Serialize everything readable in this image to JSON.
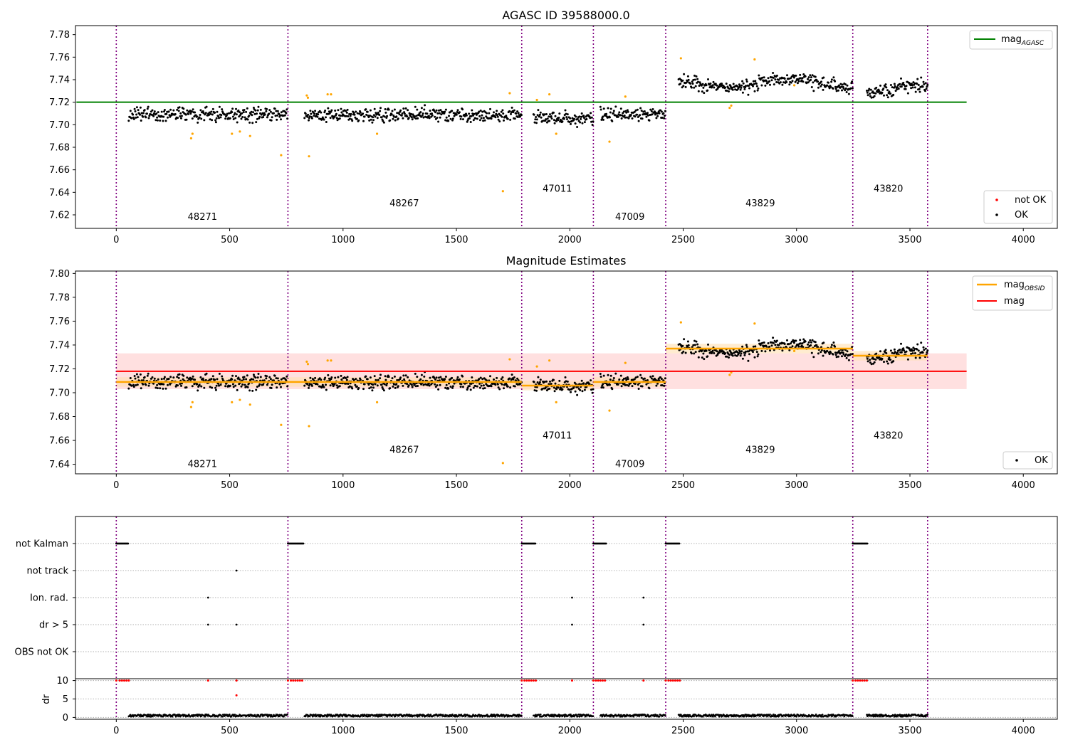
{
  "chart_data": [
    {
      "type": "scatter",
      "title": "AGASC ID 39588000.0",
      "xlim": [
        -180,
        4150
      ],
      "ylim": [
        7.608,
        7.788
      ],
      "xticks": [
        0,
        500,
        1000,
        1500,
        2000,
        2500,
        3000,
        3500,
        4000
      ],
      "yticks": [
        7.62,
        7.64,
        7.66,
        7.68,
        7.7,
        7.72,
        7.74,
        7.76,
        7.78
      ],
      "ytick_decimals": 2,
      "obs_boundaries": [
        0,
        757,
        1788,
        2104,
        2423,
        3248,
        3578
      ],
      "obs_labels": [
        {
          "text": "48271",
          "x": 380,
          "y": 7.618
        },
        {
          "text": "48267",
          "x": 1270,
          "y": 7.63
        },
        {
          "text": "47011",
          "x": 1945,
          "y": 7.643
        },
        {
          "text": "47009",
          "x": 2265,
          "y": 7.618
        },
        {
          "text": "43829",
          "x": 2840,
          "y": 7.63
        },
        {
          "text": "43820",
          "x": 3405,
          "y": 7.643
        }
      ],
      "mag_agasc": {
        "value": 7.72,
        "x_range": [
          0,
          3750
        ],
        "color": "#008000"
      },
      "not_ok_points": [
        [
          330,
          7.688
        ],
        [
          336,
          7.692
        ],
        [
          510,
          7.692
        ],
        [
          545,
          7.694
        ],
        [
          590,
          7.69
        ],
        [
          727,
          7.673
        ],
        [
          840,
          7.726
        ],
        [
          845,
          7.724
        ],
        [
          850,
          7.672
        ],
        [
          932,
          7.727
        ],
        [
          947,
          7.727
        ],
        [
          1150,
          7.692
        ],
        [
          1705,
          7.641
        ],
        [
          1735,
          7.728
        ],
        [
          1855,
          7.722
        ],
        [
          1910,
          7.727
        ],
        [
          1940,
          7.692
        ],
        [
          2175,
          7.685
        ],
        [
          2245,
          7.725
        ],
        [
          2490,
          7.759
        ],
        [
          2705,
          7.715
        ],
        [
          2712,
          7.717
        ],
        [
          2815,
          7.758
        ],
        [
          2990,
          7.735
        ]
      ],
      "legend_line": {
        "label": "mag",
        "subscript": "AGASC"
      },
      "legend_points": [
        {
          "label": "not OK",
          "color": "#ff0000"
        },
        {
          "label": "OK",
          "color": "#000000"
        }
      ]
    },
    {
      "type": "scatter",
      "title": "Magnitude Estimates",
      "xlim": [
        -180,
        4150
      ],
      "ylim": [
        7.632,
        7.802
      ],
      "xticks": [
        0,
        500,
        1000,
        1500,
        2000,
        2500,
        3000,
        3500,
        4000
      ],
      "yticks": [
        7.64,
        7.66,
        7.68,
        7.7,
        7.72,
        7.74,
        7.76,
        7.78,
        7.8
      ],
      "ytick_decimals": 2,
      "obs_boundaries": [
        0,
        757,
        1788,
        2104,
        2423,
        3248,
        3578
      ],
      "obs_labels": [
        {
          "text": "48271",
          "x": 380,
          "y": 7.64
        },
        {
          "text": "48267",
          "x": 1270,
          "y": 7.652
        },
        {
          "text": "47011",
          "x": 1945,
          "y": 7.664
        },
        {
          "text": "47009",
          "x": 2265,
          "y": 7.64
        },
        {
          "text": "43829",
          "x": 2840,
          "y": 7.652
        },
        {
          "text": "43820",
          "x": 3405,
          "y": 7.664
        }
      ],
      "mag": {
        "value": 7.718,
        "band": [
          7.703,
          7.733
        ],
        "x_range": [
          0,
          3750
        ],
        "color": "#ff0000"
      },
      "mag_obsid": [
        {
          "x_range": [
            0,
            757
          ],
          "value": 7.709
        },
        {
          "x_range": [
            757,
            1788
          ],
          "value": 7.709
        },
        {
          "x_range": [
            1788,
            2104
          ],
          "value": 7.706
        },
        {
          "x_range": [
            2104,
            2423
          ],
          "value": 7.709
        },
        {
          "x_range": [
            2423,
            3248
          ],
          "value": 7.737
        },
        {
          "x_range": [
            3248,
            3578
          ],
          "value": 7.731
        }
      ],
      "not_ok_points": [
        [
          330,
          7.688
        ],
        [
          336,
          7.692
        ],
        [
          510,
          7.692
        ],
        [
          545,
          7.694
        ],
        [
          590,
          7.69
        ],
        [
          727,
          7.673
        ],
        [
          840,
          7.726
        ],
        [
          845,
          7.724
        ],
        [
          850,
          7.672
        ],
        [
          932,
          7.727
        ],
        [
          947,
          7.727
        ],
        [
          1150,
          7.692
        ],
        [
          1705,
          7.641
        ],
        [
          1735,
          7.728
        ],
        [
          1855,
          7.722
        ],
        [
          1910,
          7.727
        ],
        [
          1940,
          7.692
        ],
        [
          2175,
          7.685
        ],
        [
          2245,
          7.725
        ],
        [
          2490,
          7.759
        ],
        [
          2705,
          7.715
        ],
        [
          2712,
          7.717
        ],
        [
          2815,
          7.758
        ],
        [
          2990,
          7.735
        ]
      ],
      "legend_lines": [
        {
          "label": "mag",
          "subscript": "OBSID",
          "color": "#ffa500"
        },
        {
          "label": "mag",
          "subscript": "",
          "color": "#ff0000"
        }
      ],
      "legend_points": [
        {
          "label": "OK",
          "color": "#000000"
        }
      ]
    },
    {
      "type": "scatter",
      "xlim": [
        -180,
        4150
      ],
      "xticks": [
        0,
        500,
        1000,
        1500,
        2000,
        2500,
        3000,
        3500,
        4000
      ],
      "obs_boundaries": [
        0,
        757,
        1788,
        2104,
        2423,
        3248,
        3578
      ],
      "flag_rows": [
        "not Kalman",
        "not track",
        "Ion. rad.",
        "dr > 5",
        "OBS not OK"
      ],
      "flag_points": {
        "not Kalman": [
          [
            0,
            55
          ],
          [
            757,
            827
          ],
          [
            1788,
            1850
          ],
          [
            2104,
            2160
          ],
          [
            2423,
            2485
          ],
          [
            3248,
            3315
          ]
        ],
        "not track": [
          530
        ],
        "Ion. rad.": [
          405,
          2010,
          2325
        ],
        "dr > 5": [
          405,
          530,
          2010,
          2325
        ],
        "OBS not OK": []
      },
      "dr_axis": {
        "label": "dr",
        "ylim": [
          -0.5,
          10.5
        ],
        "yticks": [
          0,
          5,
          10
        ],
        "red_points": [
          [
            0,
            10
          ],
          [
            15,
            10
          ],
          [
            25,
            10
          ],
          [
            35,
            10
          ],
          [
            45,
            10
          ],
          [
            55,
            10
          ],
          [
            405,
            10
          ],
          [
            530,
            10
          ],
          [
            530,
            6
          ],
          [
            757,
            10
          ],
          [
            770,
            10
          ],
          [
            780,
            10
          ],
          [
            790,
            10
          ],
          [
            800,
            10
          ],
          [
            810,
            10
          ],
          [
            820,
            10
          ],
          [
            1788,
            10
          ],
          [
            1800,
            10
          ],
          [
            1810,
            10
          ],
          [
            1820,
            10
          ],
          [
            1830,
            10
          ],
          [
            1840,
            10
          ],
          [
            1850,
            10
          ],
          [
            2010,
            10
          ],
          [
            2104,
            10
          ],
          [
            2115,
            10
          ],
          [
            2125,
            10
          ],
          [
            2135,
            10
          ],
          [
            2145,
            10
          ],
          [
            2155,
            10
          ],
          [
            2325,
            10
          ],
          [
            2423,
            10
          ],
          [
            2435,
            10
          ],
          [
            2445,
            10
          ],
          [
            2455,
            10
          ],
          [
            2465,
            10
          ],
          [
            2475,
            10
          ],
          [
            2485,
            10
          ],
          [
            3248,
            10
          ],
          [
            3260,
            10
          ],
          [
            3270,
            10
          ],
          [
            3280,
            10
          ],
          [
            3290,
            10
          ],
          [
            3300,
            10
          ],
          [
            3310,
            10
          ]
        ]
      }
    }
  ]
}
